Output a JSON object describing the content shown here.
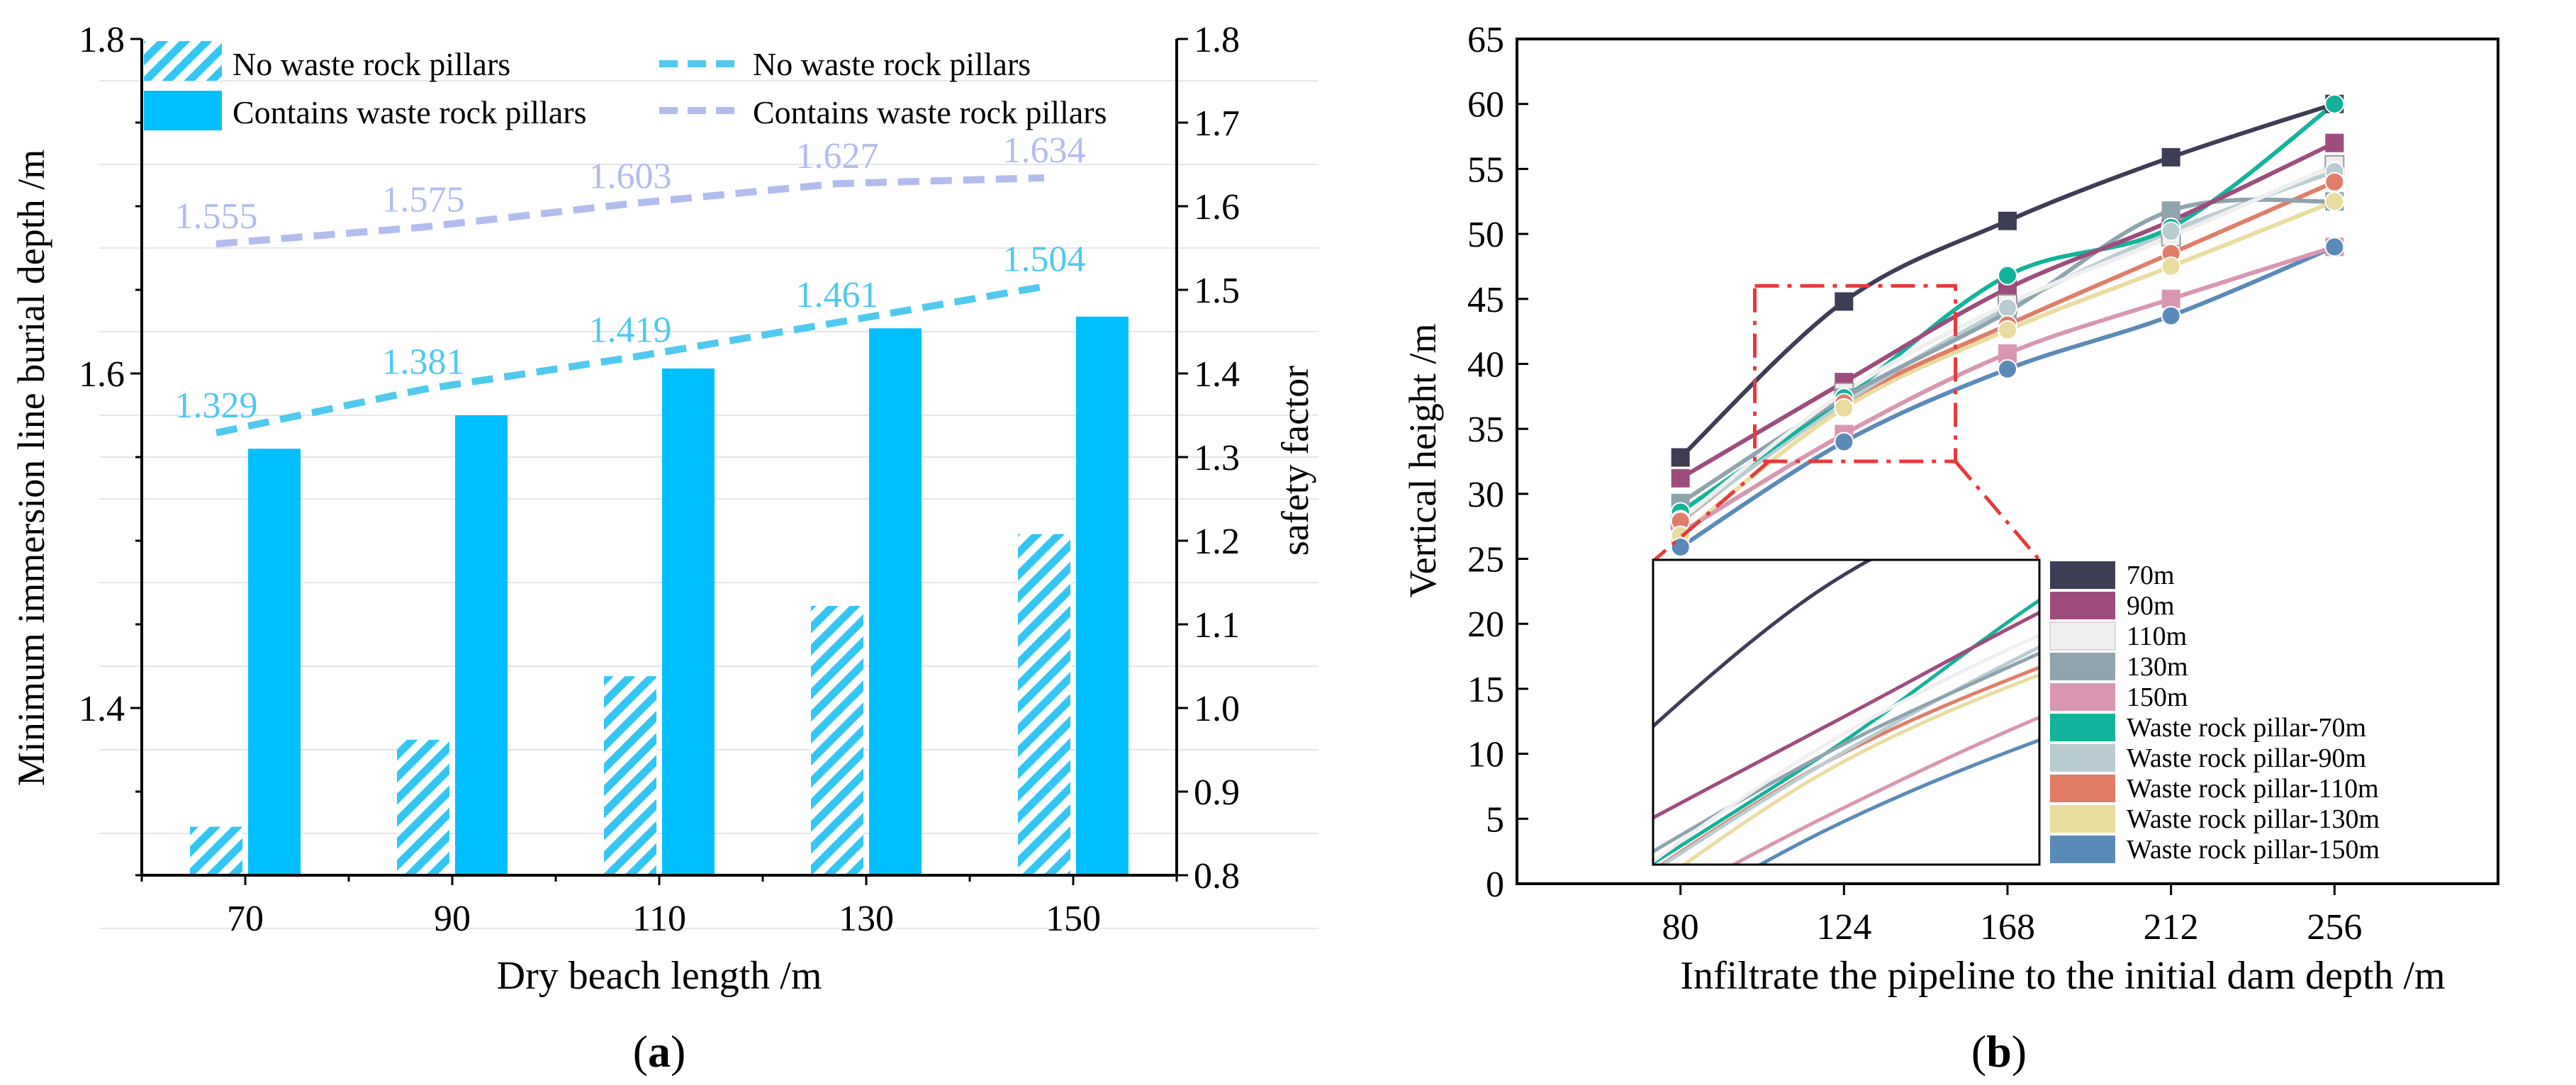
{
  "panels": {
    "a": {
      "caption_open": "(",
      "caption_letter": "a",
      "caption_close": ")"
    },
    "b": {
      "caption_open": "(",
      "caption_letter": "b",
      "caption_close": ")"
    }
  },
  "colors": {
    "bar_contains": "#00BFFF",
    "bar_none_hatch": "#33C6F5",
    "line_none": "#4FC9F0",
    "line_contains": "#B3BCEF",
    "series_b": [
      "#3E3D56",
      "#9E4C7E",
      "#EFEFEF",
      "#8FA4AE",
      "#D996B1",
      "#12B39A",
      "#B9CCD2",
      "#E17D66",
      "#E9DC9E",
      "#5A8AB8"
    ]
  },
  "chart_data": [
    {
      "type": "bar",
      "title": "",
      "xlabel": "Dry beach length /m",
      "ylabel": "Minimum immersion line burial depth /m",
      "y2label": "safety factor",
      "categories": [
        "70",
        "90",
        "110",
        "130",
        "150"
      ],
      "ylim": [
        1.3,
        1.8
      ],
      "y_ticks": [
        "1.4",
        "1.6",
        "1.8"
      ],
      "y2lim": [
        0.8,
        1.8
      ],
      "y2_ticks": [
        "0.8",
        "0.9",
        "1.0",
        "1.1",
        "1.2",
        "1.3",
        "1.4",
        "1.5",
        "1.6",
        "1.7",
        "1.8"
      ],
      "grid": true,
      "legend_position": "top",
      "series": [
        {
          "name": "No waste rock pillars",
          "kind": "bar",
          "style": "hatched",
          "axis": "left",
          "values": [
            1.329,
            1.381,
            1.419,
            1.461,
            1.504
          ]
        },
        {
          "name": "Contains waste rock pillars",
          "kind": "bar",
          "style": "solid",
          "axis": "left",
          "values": [
            1.555,
            1.575,
            1.603,
            1.627,
            1.634
          ]
        },
        {
          "name": "No waste rock pillars",
          "kind": "line",
          "style": "dashed",
          "axis": "right",
          "values": [
            1.329,
            1.381,
            1.419,
            1.461,
            1.504
          ],
          "labels": [
            "1.329",
            "1.381",
            "1.419",
            "1.461",
            "1.504"
          ]
        },
        {
          "name": "Contains waste rock pillars",
          "kind": "line",
          "style": "dashed",
          "axis": "right",
          "values": [
            1.555,
            1.575,
            1.603,
            1.627,
            1.634
          ],
          "labels": [
            "1.555",
            "1.575",
            "1.603",
            "1.627",
            "1.634"
          ]
        }
      ]
    },
    {
      "type": "line",
      "title": "",
      "xlabel": "Infiltrate the pipeline to the initial dam depth /m",
      "ylabel": "Vertical height /m",
      "x": [
        80,
        124,
        168,
        212,
        256
      ],
      "x_ticks": [
        "80",
        "124",
        "168",
        "212",
        "256"
      ],
      "xlim": [
        36,
        300
      ],
      "ylim": [
        0,
        65
      ],
      "y_ticks": [
        "0",
        "5",
        "10",
        "15",
        "20",
        "25",
        "30",
        "35",
        "40",
        "45",
        "50",
        "55",
        "60",
        "65"
      ],
      "legend_position": "bottom-right inset",
      "zoom_box": {
        "x": [
          100,
          154
        ],
        "y": [
          32.5,
          46
        ]
      },
      "series": [
        {
          "name": "70m",
          "values": [
            32.8,
            44.8,
            51.0,
            55.9,
            60.0
          ]
        },
        {
          "name": "90m",
          "values": [
            31.2,
            38.6,
            45.8,
            51.0,
            57.0
          ]
        },
        {
          "name": "110m",
          "values": [
            28.0,
            37.8,
            44.6,
            49.8,
            55.3
          ]
        },
        {
          "name": "130m",
          "values": [
            29.3,
            37.4,
            44.0,
            51.8,
            52.5
          ]
        },
        {
          "name": "150m",
          "values": [
            27.0,
            34.6,
            40.8,
            45.0,
            49.0
          ]
        },
        {
          "name": "Waste rock pillar-70m",
          "values": [
            28.6,
            37.4,
            46.8,
            50.5,
            60.0
          ]
        },
        {
          "name": "Waste rock pillar-90m",
          "values": [
            28.0,
            37.0,
            44.3,
            50.2,
            54.8
          ]
        },
        {
          "name": "Waste rock pillar-110m",
          "values": [
            27.9,
            37.0,
            43.0,
            48.5,
            54.0
          ]
        },
        {
          "name": "Waste rock pillar-130m",
          "values": [
            26.8,
            36.6,
            42.6,
            47.5,
            52.5
          ]
        },
        {
          "name": "Waste rock pillar-150m",
          "values": [
            25.9,
            34.0,
            39.6,
            43.7,
            49.0
          ]
        }
      ]
    }
  ]
}
